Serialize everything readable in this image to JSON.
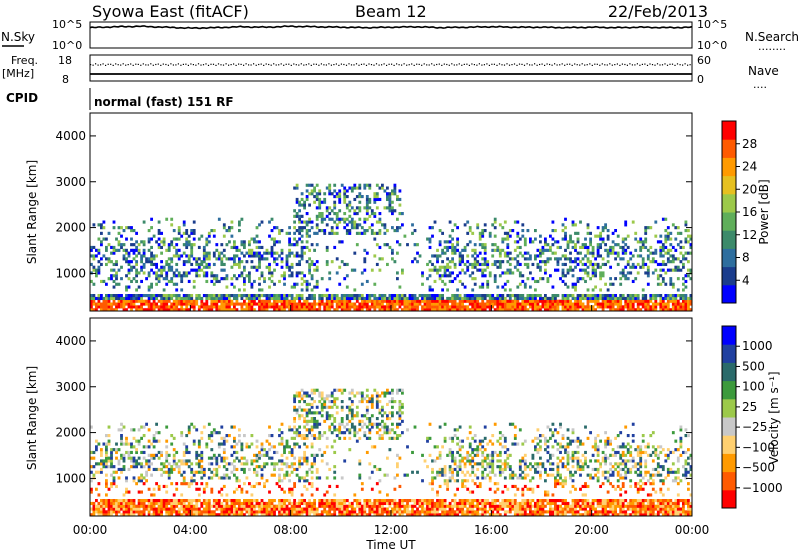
{
  "header": {
    "station": "Syowa East (fitACF)",
    "beam": "Beam 12",
    "date": "22/Feb/2013"
  },
  "mode_label": "normal (fast) 151 RF",
  "left_labels": {
    "nsky": "N.Sky",
    "freq": "Freq.",
    "freq_unit": "[MHz]",
    "cpid": "CPID"
  },
  "right_labels": {
    "nsearch": "N.Search",
    "nave": "Nave",
    "nsearch_dots": "........",
    "nave_dots": "...."
  },
  "colors": {
    "power": [
      "#0000ff",
      "#1a3c8c",
      "#2e6e9e",
      "#3c8a6a",
      "#5fae5a",
      "#9cc94a",
      "#e6c020",
      "#ff9a00",
      "#ff5a00",
      "#ff0000"
    ],
    "velocity": [
      "#ff0000",
      "#ff5a00",
      "#ff9a00",
      "#ffd070",
      "#c8c8c8",
      "#9cc94a",
      "#3c9a3c",
      "#2a6a6a",
      "#2040a0",
      "#0000ff"
    ]
  },
  "chart_data": [
    {
      "type": "line",
      "panel": "noise",
      "yticks_left": [
        "10^5",
        "10^0"
      ],
      "yticks_right": [
        "10^5",
        "10^0"
      ],
      "series": [
        {
          "values_x_hours": [
            0,
            1,
            2,
            3,
            4,
            5,
            6,
            7,
            8,
            9,
            10,
            11,
            12,
            13,
            14,
            15,
            16,
            17,
            18,
            19,
            20,
            21,
            22,
            23,
            24
          ],
          "values_log10": [
            4.2,
            4.4,
            4.5,
            4.3,
            4.1,
            4.2,
            4.4,
            4.3,
            4.5,
            4.4,
            4.3,
            4.2,
            4.3,
            4.4,
            4.2,
            4.3,
            4.4,
            4.3,
            4.3,
            4.2,
            4.3,
            4.2,
            4.3,
            4.2,
            4.3
          ]
        }
      ]
    },
    {
      "type": "scatter",
      "panel": "frequency",
      "yticks_left": [
        "18",
        "8"
      ],
      "yticks_right": [
        "60",
        "0"
      ],
      "freq_mhz": 12.0,
      "nave": 40
    },
    {
      "type": "heatmap",
      "panel": "power",
      "xlabel": "",
      "ylabel": "Slant Range [km]",
      "yticks": [
        "1000",
        "2000",
        "3000",
        "4000"
      ],
      "xticks": [
        "00:00",
        "04:00",
        "08:00",
        "12:00",
        "16:00",
        "20:00",
        "00:00"
      ],
      "xlim_hours": [
        0,
        24
      ],
      "ylim_km": [
        180,
        4500
      ],
      "colorbar": {
        "label": "Power [dB]",
        "ticks": [
          "4",
          "8",
          "12",
          "16",
          "20",
          "24",
          "28"
        ]
      }
    },
    {
      "type": "heatmap",
      "panel": "velocity",
      "xlabel": "Time UT",
      "ylabel": "Slant Range [km]",
      "yticks": [
        "1000",
        "2000",
        "3000",
        "4000"
      ],
      "xticks": [
        "00:00",
        "04:00",
        "08:00",
        "12:00",
        "16:00",
        "20:00",
        "00:00"
      ],
      "xlim_hours": [
        0,
        24
      ],
      "ylim_km": [
        180,
        4500
      ],
      "colorbar": {
        "label": "Velocity [m s⁻¹]",
        "ticks": [
          "1000",
          "500",
          "100",
          "25",
          "−25",
          "−100",
          "−500",
          "−1000"
        ]
      }
    }
  ]
}
